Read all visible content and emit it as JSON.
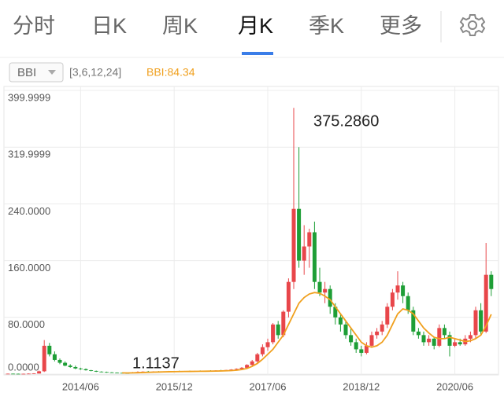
{
  "tabs": [
    "分时",
    "日K",
    "周K",
    "月K",
    "季K",
    "更多"
  ],
  "indicator": {
    "name": "BBI",
    "params": "[3,6,12,24]",
    "value_text": "BBI:84.34"
  },
  "chart_data": {
    "type": "candlestick",
    "annotations": [
      "375.2860",
      "1.1137"
    ],
    "ylim": [
      0,
      400
    ],
    "yticks": [
      399.9999,
      319.9999,
      {
        "value": 240,
        "label": "240.0000"
      },
      {
        "value": 160,
        "label": "160.0000"
      },
      {
        "value": 80,
        "label": "80.0000"
      },
      {
        "value": 0,
        "label": "0.0000"
      }
    ],
    "grid": true,
    "up_color": "#e8464a",
    "down_color": "#1e9e36",
    "line_color": "#f0a01e",
    "categories": [
      null,
      null,
      null,
      null,
      null,
      null,
      null,
      null,
      null,
      null,
      null,
      null,
      null,
      null,
      "2014/06",
      null,
      null,
      null,
      null,
      null,
      null,
      null,
      null,
      null,
      null,
      null,
      null,
      null,
      null,
      null,
      null,
      null,
      "2015/12",
      null,
      null,
      null,
      null,
      null,
      null,
      null,
      null,
      null,
      null,
      null,
      null,
      null,
      null,
      null,
      null,
      null,
      "2017/06",
      null,
      null,
      null,
      null,
      null,
      null,
      null,
      null,
      null,
      null,
      null,
      null,
      null,
      null,
      null,
      null,
      null,
      "2018/12",
      null,
      null,
      null,
      null,
      null,
      null,
      null,
      null,
      null,
      null,
      null,
      null,
      null,
      null,
      null,
      null,
      null,
      "2020/06",
      null,
      null,
      null,
      null,
      null,
      null,
      null
    ],
    "ohlc": [
      [
        0.5,
        0.8,
        0.3,
        0.6
      ],
      [
        0.6,
        0.9,
        0.4,
        0.5
      ],
      [
        0.5,
        0.8,
        0.3,
        0.4
      ],
      [
        0.4,
        0.7,
        0.2,
        0.5
      ],
      [
        0.5,
        1.0,
        0.3,
        0.7
      ],
      [
        0.7,
        1.2,
        0.5,
        0.9
      ],
      [
        0.9,
        5,
        0.8,
        4
      ],
      [
        4,
        48,
        3,
        40
      ],
      [
        40,
        44,
        25,
        28
      ],
      [
        28,
        32,
        18,
        20
      ],
      [
        20,
        22,
        14,
        16
      ],
      [
        16,
        18,
        11,
        12
      ],
      [
        12,
        14,
        9,
        10
      ],
      [
        10,
        12,
        7,
        8
      ],
      [
        8,
        9,
        6,
        7
      ],
      [
        7,
        8,
        5,
        5.5
      ],
      [
        5.5,
        6,
        4,
        4.5
      ],
      [
        4.5,
        5,
        3,
        3.5
      ],
      [
        3.5,
        4,
        2.5,
        3
      ],
      [
        3,
        3.5,
        2,
        2.5
      ],
      [
        2.5,
        3,
        1.8,
        2
      ],
      [
        2,
        2.5,
        1.5,
        1.8
      ],
      [
        1.8,
        2.2,
        1.3,
        1.5
      ],
      [
        1.5,
        1.8,
        1.1137,
        1.3
      ],
      [
        1.3,
        3,
        1.2,
        2.5
      ],
      [
        2.5,
        4,
        2,
        3
      ],
      [
        3,
        4,
        2.5,
        3.5
      ],
      [
        3.5,
        4.5,
        2.8,
        3.2
      ],
      [
        3.2,
        4,
        2.8,
        3.6
      ],
      [
        3.6,
        4.2,
        3,
        3.3
      ],
      [
        3.3,
        4,
        3,
        3.8
      ],
      [
        3.8,
        4.5,
        3.2,
        3.5
      ],
      [
        3.5,
        4.2,
        3,
        4
      ],
      [
        4,
        4.8,
        3.5,
        3.7
      ],
      [
        3.7,
        4.5,
        3.3,
        4.2
      ],
      [
        4.2,
        5,
        3.8,
        4
      ],
      [
        4,
        4.8,
        3.6,
        4.5
      ],
      [
        4.5,
        5.2,
        4,
        4.2
      ],
      [
        4.2,
        5,
        3.8,
        4.8
      ],
      [
        4.8,
        5.5,
        4.2,
        4.5
      ],
      [
        4.5,
        5.5,
        4.2,
        5.2
      ],
      [
        5.2,
        6,
        4.5,
        5
      ],
      [
        5,
        6,
        4.6,
        5.8
      ],
      [
        5.8,
        7,
        5.2,
        6.5
      ],
      [
        6.5,
        8,
        6,
        7.5
      ],
      [
        7.5,
        10,
        7,
        9
      ],
      [
        9,
        14,
        8,
        13
      ],
      [
        13,
        20,
        12,
        18
      ],
      [
        18,
        30,
        16,
        28
      ],
      [
        28,
        42,
        25,
        38
      ],
      [
        38,
        50,
        33,
        45
      ],
      [
        45,
        72,
        42,
        70
      ],
      [
        70,
        75,
        50,
        55
      ],
      [
        55,
        90,
        52,
        88
      ],
      [
        88,
        135,
        80,
        130
      ],
      [
        130,
        375.286,
        120,
        233
      ],
      [
        233,
        320,
        150,
        160
      ],
      [
        160,
        210,
        140,
        180
      ],
      [
        180,
        205,
        150,
        200
      ],
      [
        200,
        215,
        120,
        130
      ],
      [
        130,
        150,
        110,
        115
      ],
      [
        115,
        130,
        100,
        120
      ],
      [
        120,
        125,
        85,
        95
      ],
      [
        95,
        100,
        70,
        80
      ],
      [
        80,
        85,
        60,
        70
      ],
      [
        70,
        75,
        50,
        55
      ],
      [
        55,
        65,
        40,
        45
      ],
      [
        45,
        50,
        30,
        35
      ],
      [
        35,
        40,
        25,
        30
      ],
      [
        30,
        45,
        28,
        40
      ],
      [
        40,
        60,
        38,
        55
      ],
      [
        55,
        65,
        50,
        60
      ],
      [
        60,
        75,
        55,
        70
      ],
      [
        70,
        100,
        65,
        95
      ],
      [
        95,
        120,
        90,
        115
      ],
      [
        115,
        145,
        105,
        125
      ],
      [
        125,
        130,
        100,
        110
      ],
      [
        110,
        115,
        85,
        90
      ],
      [
        90,
        95,
        55,
        60
      ],
      [
        60,
        65,
        50,
        55
      ],
      [
        55,
        60,
        40,
        45
      ],
      [
        45,
        55,
        40,
        50
      ],
      [
        50,
        52,
        35,
        40
      ],
      [
        40,
        70,
        38,
        65
      ],
      [
        65,
        70,
        50,
        55
      ],
      [
        55,
        60,
        25,
        40
      ],
      [
        40,
        50,
        38,
        45
      ],
      [
        45,
        50,
        40,
        42
      ],
      [
        42,
        55,
        40,
        50
      ],
      [
        50,
        60,
        45,
        55
      ],
      [
        55,
        95,
        50,
        90
      ],
      [
        90,
        100,
        55,
        60
      ],
      [
        60,
        185,
        58,
        140
      ],
      [
        140,
        145,
        110,
        120
      ]
    ],
    "bbi": [
      null,
      null,
      null,
      null,
      null,
      null,
      null,
      null,
      null,
      null,
      null,
      null,
      null,
      null,
      null,
      null,
      null,
      null,
      null,
      null,
      null,
      null,
      1.8,
      1.7,
      1.8,
      2,
      2.3,
      2.5,
      2.8,
      3,
      3.2,
      3.4,
      3.5,
      3.6,
      3.7,
      3.8,
      3.9,
      4,
      4.1,
      4.2,
      4.3,
      4.5,
      4.7,
      5,
      5.5,
      6.5,
      8,
      11,
      15,
      21,
      28,
      35,
      45,
      55,
      70,
      85,
      100,
      108,
      113,
      115,
      114,
      110,
      105,
      95,
      85,
      75,
      65,
      55,
      45,
      40,
      38,
      40,
      45,
      55,
      70,
      85,
      92,
      90,
      85,
      75,
      65,
      58,
      52,
      50,
      50,
      52,
      50,
      48,
      46,
      47,
      50,
      55,
      68,
      84.34
    ]
  }
}
